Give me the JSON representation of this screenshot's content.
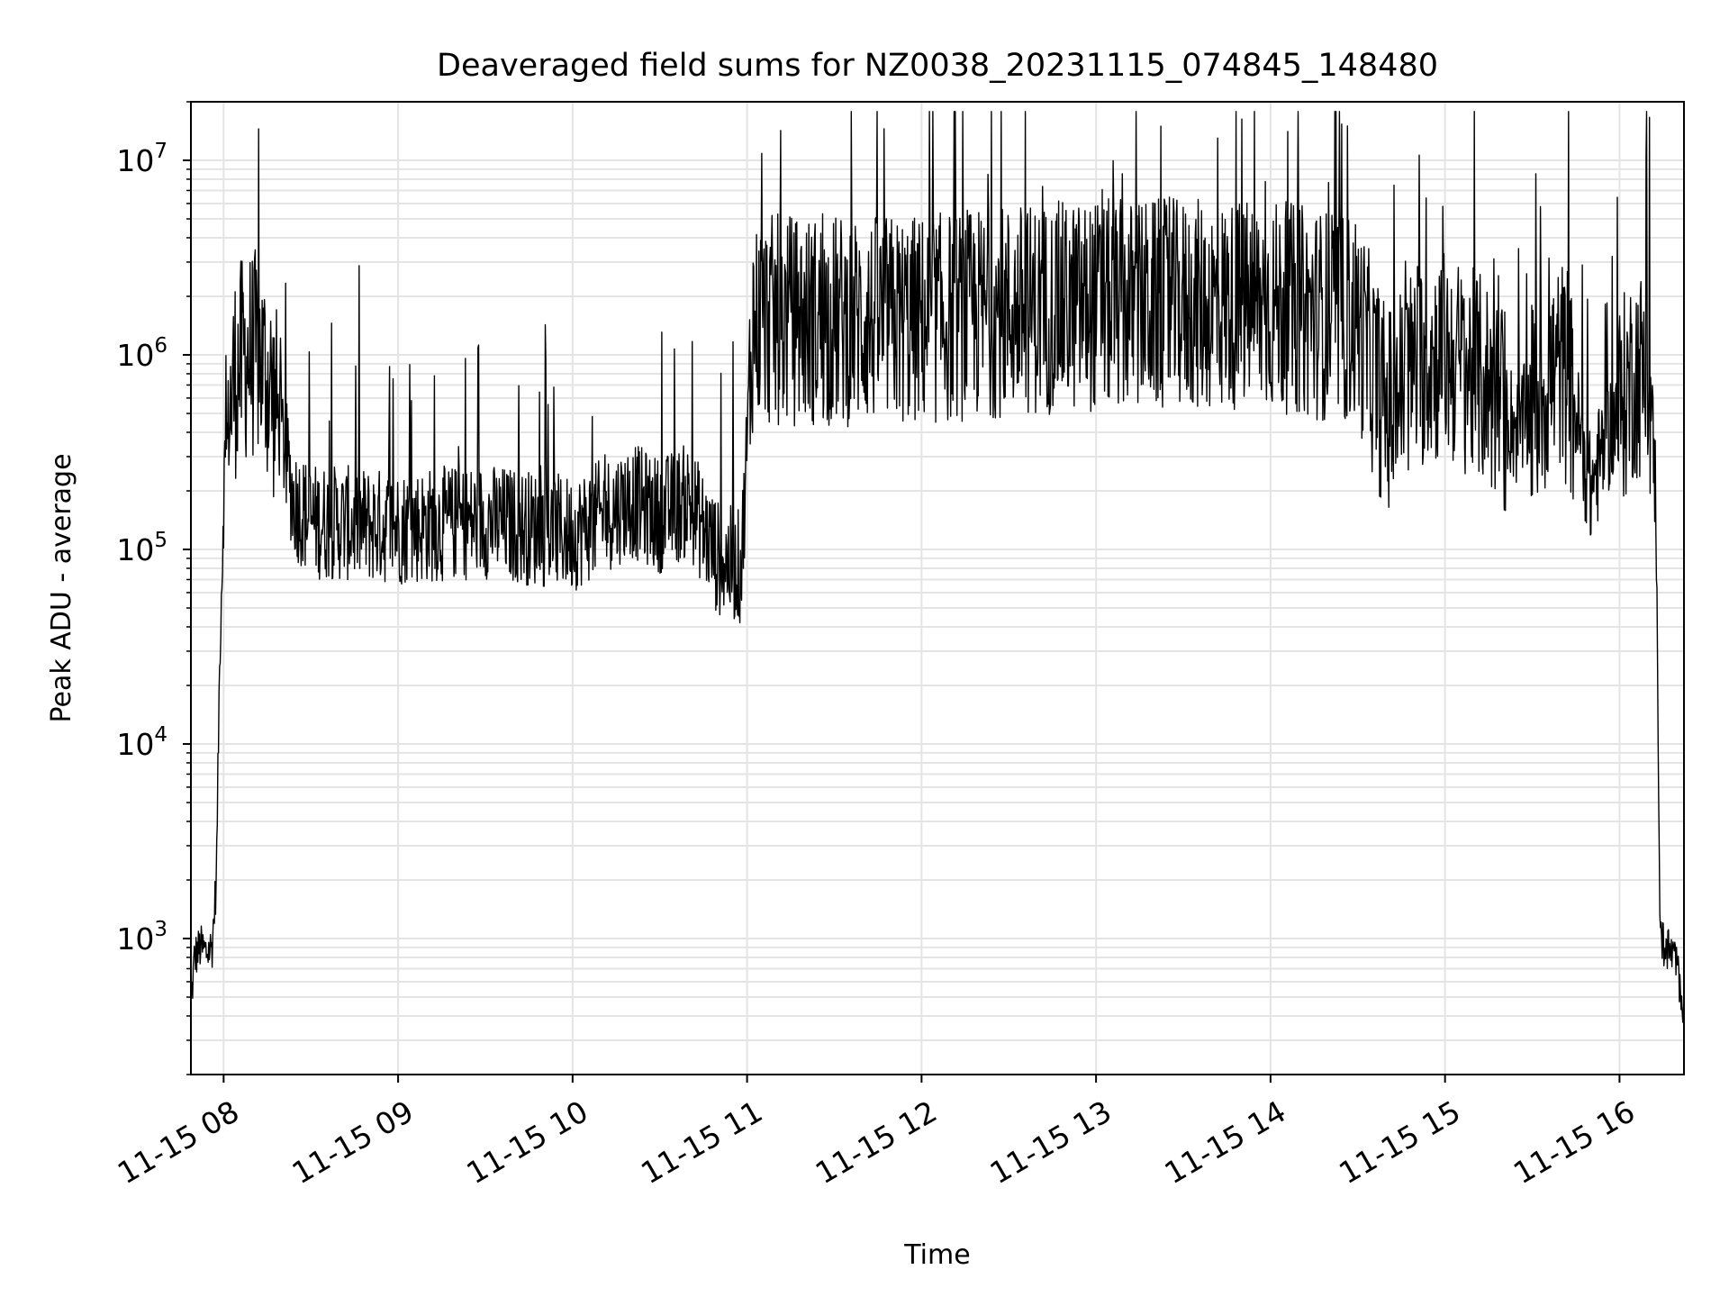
{
  "chart_data": {
    "type": "line",
    "title": "Deaveraged field sums for NZ0038_20231115_074845_148480",
    "xlabel": "Time",
    "ylabel": "Peak ADU - average",
    "x_axis": {
      "kind": "time",
      "range": [
        "2023-11-15 07:48:45",
        "2023-11-15 16:22:10"
      ],
      "ticks": [
        "2023-11-15 08:00",
        "2023-11-15 09:00",
        "2023-11-15 10:00",
        "2023-11-15 11:00",
        "2023-11-15 12:00",
        "2023-11-15 13:00",
        "2023-11-15 14:00",
        "2023-11-15 15:00",
        "2023-11-15 16:00"
      ],
      "tick_labels": [
        "11-15 08",
        "11-15 09",
        "11-15 10",
        "11-15 11",
        "11-15 12",
        "11-15 13",
        "11-15 14",
        "11-15 15",
        "11-15 16"
      ]
    },
    "y_axis": {
      "scale": "log",
      "range": [
        200,
        20000000
      ],
      "ticks": [
        1000,
        10000,
        100000,
        1000000,
        10000000
      ],
      "tick_labels": [
        {
          "base": "10",
          "exp": "3"
        },
        {
          "base": "10",
          "exp": "4"
        },
        {
          "base": "10",
          "exp": "5"
        },
        {
          "base": "10",
          "exp": "6"
        },
        {
          "base": "10",
          "exp": "7"
        }
      ]
    },
    "grid": "major and minor",
    "legend": "none",
    "series": [
      {
        "color": "#000000",
        "points": [
          [
            "2023-11-15 07:48:45",
            450
          ],
          [
            "2023-11-15 07:50:00",
            800
          ],
          [
            "2023-11-15 07:52:00",
            900
          ],
          [
            "2023-11-15 07:54:00",
            850
          ],
          [
            "2023-11-15 07:56:00",
            900
          ],
          [
            "2023-11-15 07:57:30",
            2000
          ],
          [
            "2023-11-15 07:58:30",
            20000
          ],
          [
            "2023-11-15 08:00:00",
            200000
          ],
          [
            "2023-11-15 08:02:00",
            500000
          ],
          [
            "2023-11-15 08:04:00",
            800000
          ],
          [
            "2023-11-15 08:08:00",
            1000000
          ],
          [
            "2023-11-15 08:12:00",
            1000000
          ],
          [
            "2023-11-15 08:16:00",
            700000
          ],
          [
            "2023-11-15 08:20:00",
            400000
          ],
          [
            "2023-11-15 08:24:00",
            180000
          ],
          [
            "2023-11-15 08:30:00",
            140000
          ],
          [
            "2023-11-15 09:00:00",
            130000
          ],
          [
            "2023-11-15 09:30:00",
            140000
          ],
          [
            "2023-11-15 10:00:00",
            120000
          ],
          [
            "2023-11-15 10:20:00",
            180000
          ],
          [
            "2023-11-15 10:30:00",
            150000
          ],
          [
            "2023-11-15 10:40:00",
            180000
          ],
          [
            "2023-11-15 10:50:00",
            90000
          ],
          [
            "2023-11-15 10:58:00",
            80000
          ],
          [
            "2023-11-15 11:02:00",
            1500000
          ],
          [
            "2023-11-15 11:30:00",
            1500000
          ],
          [
            "2023-11-15 12:00:00",
            1500000
          ],
          [
            "2023-11-15 12:30:00",
            1700000
          ],
          [
            "2023-11-15 13:00:00",
            1800000
          ],
          [
            "2023-11-15 13:30:00",
            1800000
          ],
          [
            "2023-11-15 14:00:00",
            1800000
          ],
          [
            "2023-11-15 14:30:00",
            1500000
          ],
          [
            "2023-11-15 14:40:00",
            500000
          ],
          [
            "2023-11-15 14:50:00",
            900000
          ],
          [
            "2023-11-15 15:00:00",
            1000000
          ],
          [
            "2023-11-15 15:15:00",
            700000
          ],
          [
            "2023-11-15 15:25:00",
            400000
          ],
          [
            "2023-11-15 15:40:00",
            900000
          ],
          [
            "2023-11-15 15:45:00",
            500000
          ],
          [
            "2023-11-15 15:50:00",
            200000
          ],
          [
            "2023-11-15 15:55:00",
            350000
          ],
          [
            "2023-11-15 16:05:00",
            800000
          ],
          [
            "2023-11-15 16:10:00",
            800000
          ],
          [
            "2023-11-15 16:12:30",
            200000
          ],
          [
            "2023-11-15 16:14:00",
            1000
          ],
          [
            "2023-11-15 16:16:00",
            900
          ],
          [
            "2023-11-15 16:19:00",
            800
          ],
          [
            "2023-11-15 16:22:10",
            450
          ]
        ]
      }
    ]
  }
}
